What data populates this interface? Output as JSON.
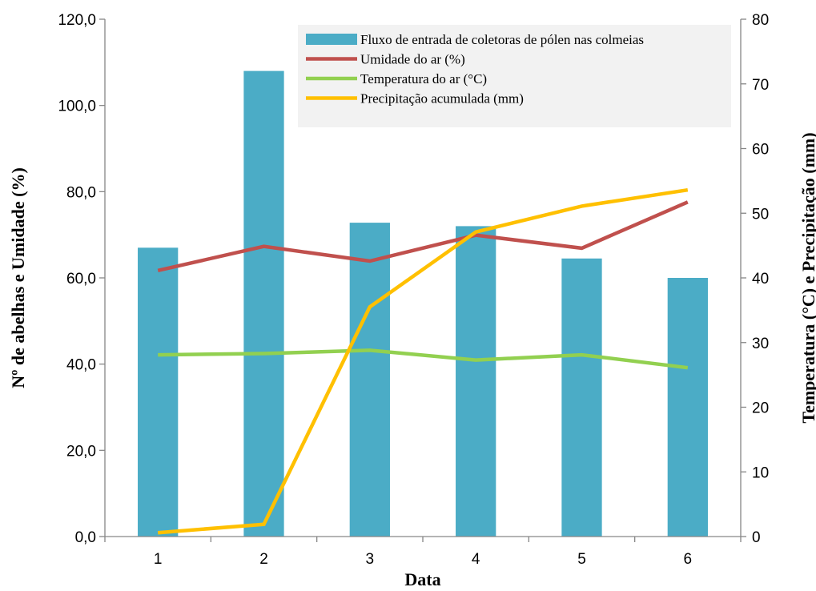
{
  "chart_data": {
    "type": "bar",
    "categories": [
      "1",
      "2",
      "3",
      "4",
      "5",
      "6"
    ],
    "xlabel": "Data",
    "ylabel_left": "Nº de abelhas e Umidade (%)",
    "ylabel_right": "Temperatura (°C) e Precipitação (mm)",
    "ylim_left": [
      0,
      120
    ],
    "ylim_right": [
      0,
      80
    ],
    "yticks_left": [
      "0,0",
      "20,0",
      "40,0",
      "60,0",
      "80,0",
      "100,0",
      "120,0"
    ],
    "yticks_right": [
      "0",
      "10",
      "20",
      "30",
      "40",
      "50",
      "60",
      "70",
      "80"
    ],
    "grid": false,
    "legend_position": "top-right",
    "series": [
      {
        "name": "Fluxo de entrada de coletoras de pólen nas colmeias",
        "kind": "bar",
        "axis": "left",
        "color": "#4BACC6",
        "values": [
          67.0,
          108.0,
          72.8,
          72.0,
          64.5,
          60.0
        ]
      },
      {
        "name": "Umidade do ar (%)",
        "kind": "line",
        "axis": "left",
        "color": "#C0504D",
        "values": [
          61.7,
          67.3,
          63.9,
          69.9,
          66.9,
          77.6
        ]
      },
      {
        "name": "Temperatura do ar (°C)",
        "kind": "line",
        "axis": "right",
        "color": "#92D050",
        "values": [
          28.1,
          28.3,
          28.8,
          27.3,
          28.1,
          26.1
        ]
      },
      {
        "name": "Precipitação acumulada (mm)",
        "kind": "line",
        "axis": "right",
        "color": "#FFC000",
        "values": [
          0.6,
          1.9,
          35.5,
          47.1,
          51.1,
          53.6
        ]
      }
    ]
  }
}
